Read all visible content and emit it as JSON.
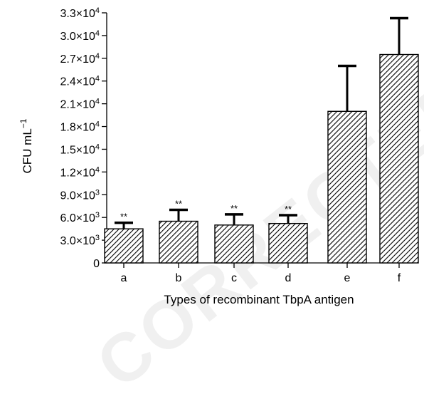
{
  "watermark": "CORRECTED PROOF",
  "chart_data": {
    "type": "bar",
    "title": "",
    "xlabel": "Types of recombinant TbpA antigen",
    "ylabel": "CFU mL",
    "ylabel_superscript": "−1",
    "ylim": [
      0,
      33000
    ],
    "yticks": [
      {
        "value": 0,
        "mantissa": "0",
        "exp": ""
      },
      {
        "value": 3000,
        "mantissa": "3.0×10",
        "exp": "3"
      },
      {
        "value": 6000,
        "mantissa": "6.0×10",
        "exp": "3"
      },
      {
        "value": 9000,
        "mantissa": "9.0×10",
        "exp": "3"
      },
      {
        "value": 12000,
        "mantissa": "1.2×10",
        "exp": "4"
      },
      {
        "value": 15000,
        "mantissa": "1.5×10",
        "exp": "4"
      },
      {
        "value": 18000,
        "mantissa": "1.8×10",
        "exp": "4"
      },
      {
        "value": 21000,
        "mantissa": "2.1×10",
        "exp": "4"
      },
      {
        "value": 24000,
        "mantissa": "2.4×10",
        "exp": "4"
      },
      {
        "value": 27000,
        "mantissa": "2.7×10",
        "exp": "4"
      },
      {
        "value": 30000,
        "mantissa": "3.0×10",
        "exp": "4"
      },
      {
        "value": 33000,
        "mantissa": "3.3×10",
        "exp": "4"
      }
    ],
    "categories": [
      "a",
      "b",
      "c",
      "d",
      "e",
      "f"
    ],
    "values": [
      4500,
      5500,
      5000,
      5200,
      20000,
      27500
    ],
    "errors": [
      800,
      1500,
      1400,
      1100,
      6000,
      4800
    ],
    "significance": [
      "**",
      "**",
      "**",
      "**",
      "",
      ""
    ],
    "bar_fill": "diagonal-hatch",
    "grid": false,
    "colors": {
      "bar_stroke": "#000000",
      "hatch": "#000000",
      "background": "#ffffff"
    }
  }
}
